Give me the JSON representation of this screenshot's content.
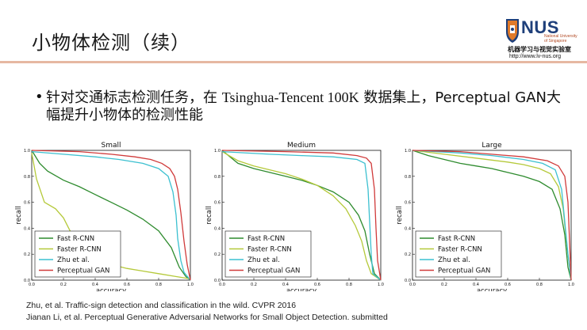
{
  "slide": {
    "title": "小物体检测（续）",
    "logo": {
      "brand": "NUS",
      "university_lines": [
        "National University",
        "of Singapore"
      ],
      "lab_name": "机器学习与视觉实验室",
      "lab_url": "http://www.lv-nus.org"
    },
    "bullet": {
      "marker": "•",
      "part1": "针对交通标志检测任务，在 ",
      "part2": "Tsinghua-Tencent 100K",
      "part3": " 数据集上，Perceptual GAN大幅提升小物体的检测性能"
    },
    "references": [
      "Zhu, et al. Traffic-sign detection and classification in the wild. CVPR 2016",
      "Jianan Li, et al. Perceptual Generative Adversarial Networks for Small Object Detection. submitted"
    ]
  },
  "colors": {
    "fast_rcnn": "#2e8b2e",
    "faster_rcnn": "#b5c93a",
    "zhu": "#3cc0d0",
    "perceptual_gan": "#d03a3a",
    "title_rule": "#e6b8a2",
    "nus_blue": "#1e3f7a",
    "nus_orange": "#e07a2a"
  },
  "chart_data": [
    {
      "type": "line",
      "title": "Small",
      "xlabel": "accuracy",
      "ylabel": "recall",
      "xlim": [
        0,
        1
      ],
      "ylim": [
        0,
        1
      ],
      "xticks": [
        "0.0",
        "0.2",
        "0.4",
        "0.6",
        "0.8",
        "1.0"
      ],
      "yticks": [
        "0.0",
        "0.2",
        "0.4",
        "0.6",
        "0.8",
        "1.0"
      ],
      "legend": "lower-left",
      "series": [
        {
          "name": "Fast R-CNN",
          "color_key": "fast_rcnn",
          "points": [
            [
              0,
              1.0
            ],
            [
              0.05,
              0.9
            ],
            [
              0.1,
              0.84
            ],
            [
              0.2,
              0.77
            ],
            [
              0.3,
              0.72
            ],
            [
              0.4,
              0.66
            ],
            [
              0.5,
              0.6
            ],
            [
              0.6,
              0.54
            ],
            [
              0.7,
              0.47
            ],
            [
              0.8,
              0.38
            ],
            [
              0.88,
              0.25
            ],
            [
              0.93,
              0.1
            ],
            [
              0.97,
              0.03
            ],
            [
              1.0,
              0.0
            ]
          ]
        },
        {
          "name": "Faster R-CNN",
          "color_key": "faster_rcnn",
          "points": [
            [
              0,
              0.98
            ],
            [
              0.03,
              0.78
            ],
            [
              0.08,
              0.6
            ],
            [
              0.15,
              0.55
            ],
            [
              0.2,
              0.48
            ],
            [
              0.25,
              0.36
            ],
            [
              0.3,
              0.26
            ],
            [
              0.35,
              0.2
            ],
            [
              0.4,
              0.16
            ],
            [
              0.5,
              0.12
            ],
            [
              0.6,
              0.09
            ],
            [
              0.7,
              0.07
            ],
            [
              0.8,
              0.05
            ],
            [
              0.9,
              0.03
            ],
            [
              1.0,
              0.01
            ]
          ]
        },
        {
          "name": "Zhu et al.",
          "color_key": "zhu",
          "points": [
            [
              0,
              0.99
            ],
            [
              0.2,
              0.97
            ],
            [
              0.4,
              0.95
            ],
            [
              0.55,
              0.93
            ],
            [
              0.7,
              0.9
            ],
            [
              0.8,
              0.86
            ],
            [
              0.86,
              0.8
            ],
            [
              0.89,
              0.68
            ],
            [
              0.91,
              0.5
            ],
            [
              0.92,
              0.32
            ],
            [
              0.94,
              0.15
            ],
            [
              0.96,
              0.06
            ],
            [
              1.0,
              0.0
            ]
          ]
        },
        {
          "name": "Perceptual GAN",
          "color_key": "perceptual_gan",
          "points": [
            [
              0,
              1.0
            ],
            [
              0.3,
              0.99
            ],
            [
              0.5,
              0.97
            ],
            [
              0.65,
              0.95
            ],
            [
              0.75,
              0.93
            ],
            [
              0.82,
              0.9
            ],
            [
              0.87,
              0.86
            ],
            [
              0.9,
              0.8
            ],
            [
              0.92,
              0.7
            ],
            [
              0.94,
              0.52
            ],
            [
              0.96,
              0.3
            ],
            [
              0.98,
              0.12
            ],
            [
              1.0,
              0.0
            ]
          ]
        }
      ]
    },
    {
      "type": "line",
      "title": "Medium",
      "xlabel": "accuracy",
      "ylabel": "recall",
      "xlim": [
        0,
        1
      ],
      "ylim": [
        0,
        1
      ],
      "xticks": [
        "0.0",
        "0.2",
        "0.4",
        "0.6",
        "0.8",
        "1.0"
      ],
      "yticks": [
        "0.0",
        "0.2",
        "0.4",
        "0.6",
        "0.8",
        "1.0"
      ],
      "legend": "lower-left",
      "series": [
        {
          "name": "Fast R-CNN",
          "color_key": "fast_rcnn",
          "points": [
            [
              0,
              1.0
            ],
            [
              0.1,
              0.9
            ],
            [
              0.2,
              0.86
            ],
            [
              0.3,
              0.83
            ],
            [
              0.4,
              0.8
            ],
            [
              0.5,
              0.77
            ],
            [
              0.6,
              0.73
            ],
            [
              0.7,
              0.68
            ],
            [
              0.8,
              0.6
            ],
            [
              0.86,
              0.5
            ],
            [
              0.9,
              0.38
            ],
            [
              0.93,
              0.2
            ],
            [
              0.96,
              0.05
            ],
            [
              1.0,
              0.0
            ]
          ]
        },
        {
          "name": "Faster R-CNN",
          "color_key": "faster_rcnn",
          "points": [
            [
              0,
              0.99
            ],
            [
              0.1,
              0.92
            ],
            [
              0.2,
              0.88
            ],
            [
              0.3,
              0.85
            ],
            [
              0.4,
              0.82
            ],
            [
              0.5,
              0.78
            ],
            [
              0.6,
              0.73
            ],
            [
              0.7,
              0.65
            ],
            [
              0.78,
              0.55
            ],
            [
              0.84,
              0.42
            ],
            [
              0.88,
              0.3
            ],
            [
              0.91,
              0.15
            ],
            [
              0.94,
              0.05
            ],
            [
              1.0,
              0.0
            ]
          ]
        },
        {
          "name": "Zhu et al.",
          "color_key": "zhu",
          "points": [
            [
              0,
              0.99
            ],
            [
              0.3,
              0.97
            ],
            [
              0.5,
              0.96
            ],
            [
              0.7,
              0.95
            ],
            [
              0.85,
              0.93
            ],
            [
              0.9,
              0.9
            ],
            [
              0.92,
              0.7
            ],
            [
              0.93,
              0.45
            ],
            [
              0.94,
              0.2
            ],
            [
              0.95,
              0.05
            ],
            [
              1.0,
              0.0
            ]
          ]
        },
        {
          "name": "Perceptual GAN",
          "color_key": "perceptual_gan",
          "points": [
            [
              0,
              1.0
            ],
            [
              0.4,
              0.99
            ],
            [
              0.7,
              0.98
            ],
            [
              0.85,
              0.96
            ],
            [
              0.91,
              0.94
            ],
            [
              0.94,
              0.9
            ],
            [
              0.96,
              0.7
            ],
            [
              0.97,
              0.4
            ],
            [
              0.98,
              0.15
            ],
            [
              1.0,
              0.0
            ]
          ]
        }
      ]
    },
    {
      "type": "line",
      "title": "Large",
      "xlabel": "accuracy",
      "ylabel": "recall",
      "xlim": [
        0,
        1
      ],
      "ylim": [
        0,
        1
      ],
      "xticks": [
        "0.0",
        "0.2",
        "0.4",
        "0.6",
        "0.8",
        "1.0"
      ],
      "yticks": [
        "0.0",
        "0.2",
        "0.4",
        "0.6",
        "0.8",
        "1.0"
      ],
      "legend": "lower-left",
      "series": [
        {
          "name": "Fast R-CNN",
          "color_key": "fast_rcnn",
          "points": [
            [
              0,
              1.0
            ],
            [
              0.1,
              0.96
            ],
            [
              0.2,
              0.93
            ],
            [
              0.3,
              0.9
            ],
            [
              0.4,
              0.88
            ],
            [
              0.5,
              0.86
            ],
            [
              0.6,
              0.83
            ],
            [
              0.7,
              0.8
            ],
            [
              0.8,
              0.76
            ],
            [
              0.88,
              0.7
            ],
            [
              0.93,
              0.55
            ],
            [
              0.96,
              0.35
            ],
            [
              0.98,
              0.1
            ],
            [
              1.0,
              0.0
            ]
          ]
        },
        {
          "name": "Faster R-CNN",
          "color_key": "faster_rcnn",
          "points": [
            [
              0,
              1.0
            ],
            [
              0.2,
              0.97
            ],
            [
              0.4,
              0.94
            ],
            [
              0.6,
              0.91
            ],
            [
              0.7,
              0.89
            ],
            [
              0.8,
              0.86
            ],
            [
              0.87,
              0.82
            ],
            [
              0.92,
              0.72
            ],
            [
              0.95,
              0.55
            ],
            [
              0.97,
              0.3
            ],
            [
              0.99,
              0.1
            ],
            [
              1.0,
              0.0
            ]
          ]
        },
        {
          "name": "Zhu et al.",
          "color_key": "zhu",
          "points": [
            [
              0,
              1.0
            ],
            [
              0.3,
              0.98
            ],
            [
              0.5,
              0.96
            ],
            [
              0.7,
              0.93
            ],
            [
              0.82,
              0.9
            ],
            [
              0.9,
              0.85
            ],
            [
              0.94,
              0.7
            ],
            [
              0.96,
              0.45
            ],
            [
              0.98,
              0.2
            ],
            [
              1.0,
              0.0
            ]
          ]
        },
        {
          "name": "Perceptual GAN",
          "color_key": "perceptual_gan",
          "points": [
            [
              0,
              1.0
            ],
            [
              0.3,
              0.99
            ],
            [
              0.5,
              0.97
            ],
            [
              0.7,
              0.95
            ],
            [
              0.85,
              0.92
            ],
            [
              0.92,
              0.88
            ],
            [
              0.96,
              0.8
            ],
            [
              0.98,
              0.6
            ],
            [
              0.99,
              0.3
            ],
            [
              1.0,
              0.0
            ]
          ]
        }
      ]
    }
  ]
}
